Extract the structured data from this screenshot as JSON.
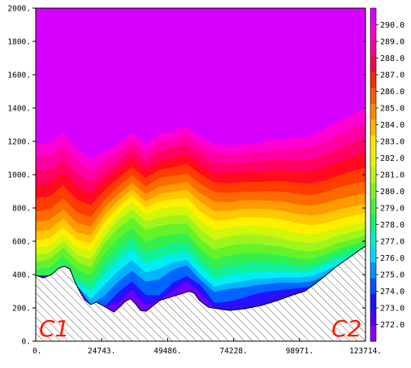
{
  "chart_data": {
    "type": "area",
    "title": "",
    "xlabel": "",
    "ylabel": "",
    "xlim": [
      0,
      123714
    ],
    "ylim": [
      0,
      2000
    ],
    "x_tick_labels": [
      "0.",
      "24743.",
      "49486.",
      "74228.",
      "98971.",
      "123714."
    ],
    "x_tick_values": [
      0,
      24743,
      49486,
      74228,
      98971,
      123714
    ],
    "y_tick_labels": [
      "0.",
      "200.",
      "400.",
      "600.",
      "800.",
      "1000.",
      "1200.",
      "1400.",
      "1600.",
      "1800.",
      "2000."
    ],
    "y_tick_values": [
      0,
      200,
      400,
      600,
      800,
      1000,
      1200,
      1400,
      1600,
      1800,
      2000
    ],
    "colorbar": {
      "labels": [
        "290.0",
        "289.0",
        "288.0",
        "287.0",
        "286.0",
        "285.0",
        "284.0",
        "283.0",
        "282.0",
        "281.0",
        "280.0",
        "279.0",
        "278.0",
        "277.0",
        "276.0",
        "275.0",
        "274.0",
        "273.0",
        "272.0"
      ],
      "levels": [
        272,
        273,
        274,
        275,
        276,
        277,
        278,
        279,
        280,
        281,
        282,
        283,
        284,
        285,
        286,
        287,
        288,
        289,
        290
      ],
      "colors": [
        "#8a00ff",
        "#4b00ff",
        "#1e10ff",
        "#0050ff",
        "#0094ff",
        "#00d8ff",
        "#00f0c0",
        "#14f06e",
        "#46f03c",
        "#7df228",
        "#b4f41e",
        "#e1f800",
        "#ffe600",
        "#ffb400",
        "#ff8800",
        "#ff5a00",
        "#ff2800",
        "#ff0046",
        "#ff0096",
        "#ff00c8",
        "#d700ff"
      ]
    },
    "contour_levels": [
      {
        "level": 272,
        "color": "#6e00ff",
        "depths": [
          0,
          0,
          0,
          0,
          0,
          0,
          10,
          18,
          12,
          0,
          10,
          20,
          14,
          0,
          0,
          0,
          0,
          0,
          0,
          0,
          0,
          0,
          0,
          0,
          0
        ]
      },
      {
        "level": 273,
        "color": "#2810ff",
        "depths": [
          0,
          0,
          0,
          0,
          0,
          0,
          30,
          35,
          30,
          10,
          26,
          30,
          30,
          10,
          16,
          20,
          24,
          22,
          16,
          10,
          0,
          0,
          0,
          0,
          0
        ]
      },
      {
        "level": 274,
        "color": "#0064ff",
        "depths": [
          0,
          0,
          0,
          0,
          0,
          20,
          50,
          55,
          55,
          40,
          50,
          50,
          40,
          30,
          40,
          40,
          40,
          36,
          30,
          20,
          10,
          0,
          0,
          0,
          0
        ]
      },
      {
        "level": 275,
        "color": "#00b4ff",
        "depths": [
          0,
          0,
          0,
          0,
          10,
          40,
          70,
          75,
          72,
          60,
          64,
          60,
          50,
          40,
          50,
          52,
          52,
          46,
          40,
          30,
          20,
          10,
          0,
          0,
          0
        ]
      },
      {
        "level": 276,
        "color": "#00eef0",
        "depths": [
          0,
          0,
          0,
          5,
          25,
          60,
          90,
          96,
          92,
          80,
          80,
          75,
          64,
          55,
          66,
          68,
          66,
          60,
          52,
          40,
          30,
          20,
          10,
          0,
          0
        ]
      },
      {
        "level": 277,
        "color": "#10f096",
        "depths": [
          0,
          0,
          5,
          15,
          40,
          80,
          110,
          115,
          110,
          100,
          98,
          92,
          80,
          72,
          84,
          86,
          84,
          76,
          66,
          52,
          40,
          30,
          20,
          10,
          0
        ]
      },
      {
        "level": 278,
        "color": "#32f050",
        "depths": [
          10,
          15,
          20,
          30,
          55,
          100,
          130,
          135,
          130,
          120,
          116,
          110,
          98,
          90,
          102,
          104,
          100,
          92,
          80,
          66,
          52,
          40,
          30,
          20,
          10
        ]
      },
      {
        "level": 279,
        "color": "#64f228",
        "depths": [
          25,
          30,
          35,
          45,
          70,
          118,
          150,
          155,
          152,
          140,
          136,
          128,
          116,
          110,
          120,
          122,
          118,
          108,
          96,
          82,
          66,
          52,
          42,
          30,
          20
        ]
      },
      {
        "level": 280,
        "color": "#a0f41e",
        "depths": [
          38,
          42,
          48,
          58,
          85,
          130,
          165,
          170,
          168,
          156,
          152,
          144,
          134,
          128,
          138,
          140,
          136,
          126,
          112,
          98,
          82,
          68,
          56,
          44,
          32
        ]
      },
      {
        "level": 281,
        "color": "#d2f60a",
        "depths": [
          52,
          56,
          60,
          72,
          100,
          145,
          178,
          184,
          182,
          172,
          168,
          160,
          150,
          146,
          154,
          156,
          152,
          142,
          130,
          114,
          98,
          84,
          70,
          58,
          46
        ]
      },
      {
        "level": 282,
        "color": "#fff000",
        "depths": [
          66,
          70,
          74,
          86,
          115,
          158,
          190,
          196,
          194,
          186,
          182,
          176,
          168,
          164,
          170,
          172,
          168,
          160,
          148,
          132,
          116,
          100,
          86,
          74,
          62
        ]
      },
      {
        "level": 283,
        "color": "#ffc800",
        "depths": [
          82,
          86,
          90,
          100,
          130,
          172,
          202,
          208,
          206,
          200,
          196,
          192,
          186,
          182,
          186,
          188,
          184,
          176,
          164,
          150,
          134,
          118,
          104,
          92,
          80
        ]
      },
      {
        "level": 284,
        "color": "#ff9a00",
        "depths": [
          100,
          104,
          108,
          118,
          146,
          186,
          214,
          220,
          220,
          214,
          210,
          206,
          202,
          200,
          202,
          204,
          200,
          192,
          182,
          168,
          152,
          138,
          124,
          112,
          100
        ]
      },
      {
        "level": 285,
        "color": "#ff6a00",
        "depths": [
          120,
          124,
          128,
          138,
          164,
          200,
          228,
          234,
          234,
          230,
          226,
          222,
          220,
          218,
          220,
          220,
          216,
          210,
          200,
          188,
          172,
          158,
          146,
          134,
          122
        ]
      },
      {
        "level": 286,
        "color": "#ff3c00",
        "depths": [
          145,
          148,
          152,
          162,
          186,
          218,
          244,
          250,
          250,
          246,
          242,
          240,
          238,
          236,
          238,
          238,
          234,
          228,
          220,
          208,
          194,
          180,
          168,
          158,
          148
        ]
      },
      {
        "level": 287,
        "color": "#ff0a1e",
        "depths": [
          170,
          172,
          176,
          186,
          208,
          236,
          260,
          266,
          266,
          262,
          260,
          258,
          256,
          254,
          256,
          256,
          252,
          248,
          240,
          230,
          216,
          204,
          192,
          184,
          176
        ]
      },
      {
        "level": 288,
        "color": "#ff0064",
        "depths": [
          196,
          198,
          200,
          210,
          230,
          254,
          276,
          282,
          282,
          280,
          278,
          276,
          274,
          274,
          274,
          274,
          272,
          268,
          260,
          250,
          240,
          228,
          218,
          210,
          204
        ]
      },
      {
        "level": 289,
        "color": "#ff00a0",
        "depths": [
          222,
          224,
          226,
          234,
          252,
          272,
          292,
          298,
          298,
          296,
          294,
          294,
          292,
          292,
          292,
          292,
          290,
          286,
          280,
          272,
          262,
          252,
          244,
          238,
          232
        ]
      },
      {
        "level": 290,
        "color": "#ff00d2",
        "depths": [
          246,
          248,
          250,
          256,
          272,
          290,
          308,
          314,
          314,
          312,
          310,
          310,
          308,
          308,
          308,
          308,
          306,
          304,
          298,
          292,
          284,
          276,
          270,
          264,
          260
        ]
      }
    ],
    "background_color": "#d700ff",
    "terrain_m": [
      [
        0,
        395
      ],
      [
        2900,
        380
      ],
      [
        5900,
        400
      ],
      [
        8800,
        440
      ],
      [
        10800,
        450
      ],
      [
        12800,
        435
      ],
      [
        14600,
        360
      ],
      [
        16500,
        300
      ],
      [
        18300,
        250
      ],
      [
        20600,
        220
      ],
      [
        22700,
        235
      ],
      [
        25000,
        215
      ],
      [
        27300,
        195
      ],
      [
        29300,
        175
      ],
      [
        31800,
        210
      ],
      [
        33600,
        240
      ],
      [
        35600,
        255
      ],
      [
        37400,
        225
      ],
      [
        39300,
        185
      ],
      [
        41400,
        180
      ],
      [
        43400,
        205
      ],
      [
        46500,
        245
      ],
      [
        50600,
        265
      ],
      [
        54600,
        285
      ],
      [
        57500,
        300
      ],
      [
        59400,
        290
      ],
      [
        61400,
        245
      ],
      [
        64700,
        205
      ],
      [
        68200,
        195
      ],
      [
        72700,
        185
      ],
      [
        78600,
        195
      ],
      [
        84700,
        215
      ],
      [
        90800,
        245
      ],
      [
        96800,
        280
      ],
      [
        100900,
        300
      ],
      [
        104800,
        345
      ],
      [
        108800,
        395
      ],
      [
        112900,
        450
      ],
      [
        117800,
        505
      ],
      [
        121700,
        550
      ],
      [
        123714,
        570
      ]
    ],
    "annotations": [
      "C1",
      "C2"
    ]
  }
}
